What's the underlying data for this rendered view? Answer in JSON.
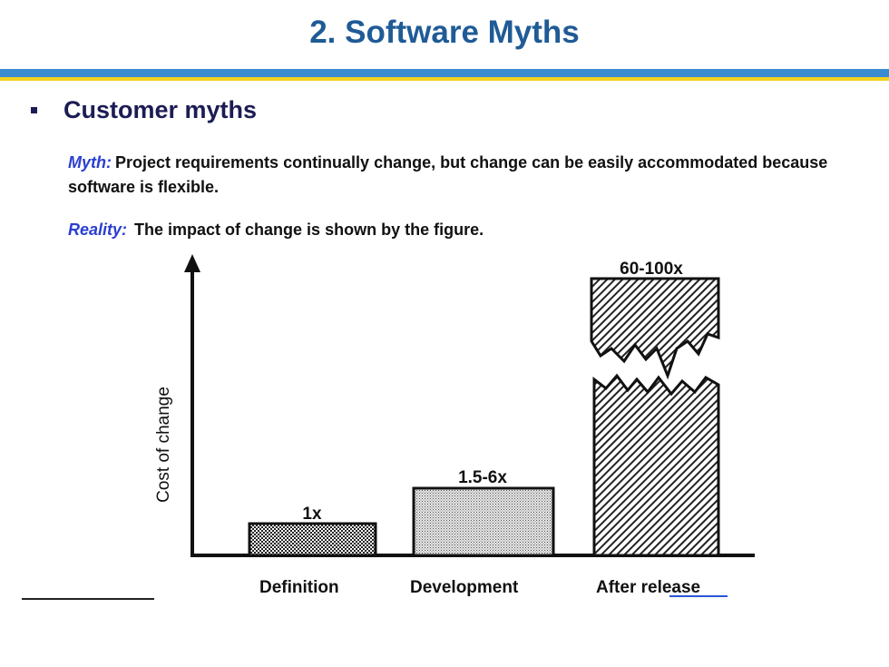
{
  "slide": {
    "title": "2. Software Myths",
    "heading": "Customer myths",
    "myth_label": "Myth:",
    "myth_text": "Project requirements continually change, but change can be easily accommodated because software is flexible.",
    "reality_label": "Reality:",
    "reality_text": "The impact of change is shown by the figure."
  },
  "figure": {
    "y_axis_label": "Cost of change",
    "bars": [
      {
        "category": "Definition",
        "value_label": "1x",
        "pattern": "crosshatch"
      },
      {
        "category": "Development",
        "value_label": "1.5-6x",
        "pattern": "dots"
      },
      {
        "category": "After release",
        "value_label": "60-100x",
        "pattern": "diagonal-broken"
      }
    ]
  },
  "colors": {
    "title": "#1f5b96",
    "heading": "#1c1c55",
    "lead_label": "#2a3fd0",
    "rule_blue": "#3a8bd0",
    "rule_yellow": "#f3d21f"
  }
}
